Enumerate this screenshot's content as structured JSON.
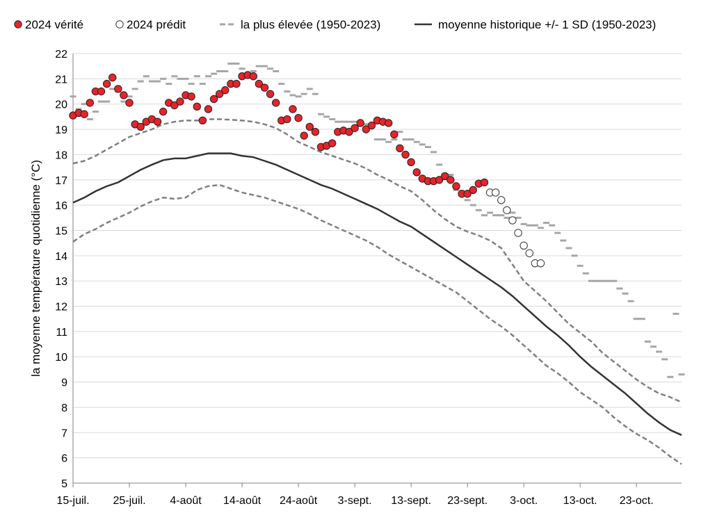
{
  "chart_data": {
    "type": "line",
    "title": "",
    "xlabel": "",
    "ylabel": "la moyenne température quotidienne (°C)",
    "ylim": [
      5,
      22
    ],
    "yticks": [
      5,
      6,
      7,
      8,
      9,
      10,
      11,
      12,
      13,
      14,
      15,
      16,
      17,
      18,
      19,
      20,
      21,
      22
    ],
    "xlim": [
      0,
      108
    ],
    "grid": "horizontal",
    "legend_position": "top",
    "x_tick_labels": [
      {
        "day": 0,
        "label": "15-juil."
      },
      {
        "day": 10,
        "label": "25-juil."
      },
      {
        "day": 20,
        "label": "4-août"
      },
      {
        "day": 30,
        "label": "14-août"
      },
      {
        "day": 40,
        "label": "24-août"
      },
      {
        "day": 50,
        "label": "3-sept."
      },
      {
        "day": 60,
        "label": "13-sept."
      },
      {
        "day": 70,
        "label": "23-sept."
      },
      {
        "day": 80,
        "label": "3-oct."
      },
      {
        "day": 90,
        "label": "13-oct."
      },
      {
        "day": 100,
        "label": "23-oct."
      }
    ],
    "legend": [
      {
        "key": "truth",
        "label": "2024 vérité",
        "marker": "filled-circle"
      },
      {
        "key": "predicted",
        "label": "2024 prédit",
        "marker": "open-circle"
      },
      {
        "key": "highest",
        "label": "la plus élevée (1950-2023)",
        "marker": "gray-dash"
      },
      {
        "key": "mean",
        "label": "moyenne historique +/- 1 SD (1950-2023)",
        "marker": "black-line"
      }
    ],
    "colors": {
      "truth_fill": "#e8232a",
      "truth_edge": "#222222",
      "predicted_edge": "#333333",
      "highest": "#a6a6a6",
      "mean": "#333333",
      "sd": "#7f7f7f",
      "grid": "#d9d9d9",
      "axis": "#808080"
    },
    "series": [
      {
        "name": "2024 vérité",
        "key": "truth",
        "x": [
          0,
          1,
          2,
          3,
          4,
          5,
          6,
          7,
          8,
          9,
          10,
          11,
          12,
          13,
          14,
          15,
          16,
          17,
          18,
          19,
          20,
          21,
          22,
          23,
          24,
          25,
          26,
          27,
          28,
          29,
          30,
          31,
          32,
          33,
          34,
          35,
          36,
          37,
          38,
          39,
          40,
          41,
          42,
          43,
          44,
          45,
          46,
          47,
          48,
          49,
          50,
          51,
          52,
          53,
          54,
          55,
          56,
          57,
          58,
          59,
          60,
          61,
          62,
          63,
          64,
          65,
          66,
          67,
          68,
          69,
          70,
          71,
          72,
          73
        ],
        "values": [
          19.55,
          19.65,
          19.6,
          20.05,
          20.5,
          20.5,
          20.8,
          21.05,
          20.6,
          20.35,
          20.05,
          19.2,
          19.1,
          19.3,
          19.4,
          19.3,
          19.7,
          20.05,
          19.95,
          20.1,
          20.35,
          20.3,
          19.9,
          19.35,
          19.8,
          20.2,
          20.4,
          20.55,
          20.8,
          20.8,
          21.1,
          21.15,
          21.1,
          20.8,
          20.65,
          20.4,
          20.05,
          19.35,
          19.4,
          19.8,
          19.45,
          18.75,
          19.1,
          18.9,
          18.3,
          18.35,
          18.45,
          18.9,
          18.95,
          18.9,
          19.05,
          19.25,
          19.0,
          19.15,
          19.35,
          19.3,
          19.25,
          18.8,
          18.25,
          18.0,
          17.7,
          17.3,
          17.05,
          16.95,
          16.95,
          17.0,
          17.15,
          17.0,
          16.75,
          16.45,
          16.45,
          16.6,
          16.85,
          16.9
        ]
      },
      {
        "name": "2024 prédit",
        "key": "predicted",
        "x": [
          74,
          75,
          76,
          77,
          78,
          79,
          80,
          81,
          82,
          83
        ],
        "values": [
          16.5,
          16.5,
          16.2,
          15.8,
          15.4,
          14.9,
          14.4,
          14.1,
          13.7,
          13.7
        ]
      },
      {
        "name": "la plus élevée (1950-2023)",
        "key": "highest",
        "x": [
          0,
          1,
          2,
          3,
          4,
          5,
          6,
          7,
          8,
          9,
          10,
          11,
          12,
          13,
          14,
          15,
          16,
          17,
          18,
          19,
          20,
          21,
          22,
          23,
          24,
          25,
          26,
          27,
          28,
          29,
          30,
          31,
          32,
          33,
          34,
          35,
          36,
          37,
          38,
          39,
          40,
          41,
          42,
          43,
          44,
          45,
          46,
          47,
          48,
          49,
          50,
          51,
          52,
          53,
          54,
          55,
          56,
          57,
          58,
          59,
          60,
          61,
          62,
          63,
          64,
          65,
          66,
          67,
          68,
          69,
          70,
          71,
          72,
          73,
          74,
          75,
          76,
          77,
          78,
          79,
          80,
          81,
          82,
          83,
          84,
          85,
          86,
          87,
          88,
          89,
          90,
          91,
          92,
          93,
          94,
          95,
          96,
          97,
          98,
          99,
          100,
          101,
          102,
          103,
          104,
          105,
          106,
          107,
          108
        ],
        "values": [
          20.3,
          19.8,
          20.0,
          19.4,
          19.7,
          20.1,
          20.1,
          20.6,
          20.5,
          20.1,
          20.3,
          20.6,
          20.9,
          21.1,
          20.9,
          20.9,
          21.0,
          20.8,
          21.1,
          21.0,
          21.0,
          20.8,
          21.1,
          20.8,
          21.1,
          21.2,
          21.3,
          21.3,
          21.6,
          21.6,
          21.4,
          21.2,
          21.3,
          21.5,
          21.5,
          21.4,
          21.3,
          20.8,
          20.5,
          20.35,
          20.3,
          20.4,
          20.6,
          20.4,
          19.6,
          19.5,
          19.4,
          19.3,
          19.3,
          19.3,
          19.3,
          19.2,
          19.2,
          19.1,
          18.6,
          18.6,
          18.5,
          18.6,
          18.9,
          18.6,
          18.6,
          18.5,
          18.4,
          18.3,
          18.1,
          17.6,
          17.2,
          17.2,
          16.6,
          16.5,
          16.2,
          16.0,
          15.8,
          15.6,
          15.7,
          15.6,
          15.6,
          15.5,
          15.7,
          15.5,
          15.25,
          15.2,
          15.2,
          15.1,
          15.3,
          15.2,
          14.9,
          14.6,
          14.3,
          14.0,
          13.6,
          13.3,
          13.0,
          13.0,
          13.0,
          13.0,
          13.0,
          12.7,
          12.5,
          12.2,
          11.5,
          11.5,
          10.6,
          10.4,
          10.2,
          9.9,
          9.2,
          11.7,
          9.3
        ]
      },
      {
        "name": "moyenne historique",
        "key": "mean",
        "x": [
          0,
          2,
          4,
          6,
          8,
          10,
          12,
          14,
          16,
          18,
          20,
          22,
          24,
          26,
          28,
          30,
          32,
          34,
          36,
          38,
          40,
          42,
          44,
          46,
          48,
          50,
          52,
          54,
          56,
          58,
          60,
          62,
          64,
          66,
          68,
          70,
          72,
          74,
          76,
          78,
          80,
          82,
          84,
          86,
          88,
          90,
          92,
          94,
          96,
          98,
          100,
          102,
          104,
          106,
          108
        ],
        "values": [
          16.1,
          16.3,
          16.55,
          16.75,
          16.9,
          17.15,
          17.4,
          17.6,
          17.78,
          17.85,
          17.85,
          17.95,
          18.05,
          18.05,
          18.05,
          17.95,
          17.9,
          17.75,
          17.6,
          17.4,
          17.2,
          17.0,
          16.8,
          16.65,
          16.45,
          16.25,
          16.05,
          15.85,
          15.6,
          15.35,
          15.15,
          14.85,
          14.55,
          14.25,
          13.95,
          13.65,
          13.35,
          13.05,
          12.75,
          12.4,
          12.0,
          11.6,
          11.2,
          10.85,
          10.45,
          10.0,
          9.6,
          9.25,
          8.9,
          8.55,
          8.15,
          7.75,
          7.4,
          7.1,
          6.9
        ]
      },
      {
        "name": "moyenne + 1 SD",
        "key": "upper_sd",
        "x": [
          0,
          2,
          4,
          6,
          8,
          10,
          12,
          14,
          16,
          18,
          20,
          22,
          24,
          26,
          28,
          30,
          32,
          34,
          36,
          38,
          40,
          42,
          44,
          46,
          48,
          50,
          52,
          54,
          56,
          58,
          60,
          62,
          64,
          66,
          68,
          70,
          72,
          74,
          76,
          78,
          80,
          82,
          84,
          86,
          88,
          90,
          92,
          94,
          96,
          98,
          100,
          102,
          104,
          106,
          108
        ],
        "values": [
          17.65,
          17.75,
          17.95,
          18.2,
          18.45,
          18.7,
          18.85,
          19.0,
          19.2,
          19.3,
          19.35,
          19.35,
          19.4,
          19.4,
          19.38,
          19.35,
          19.3,
          19.2,
          19.05,
          18.8,
          18.5,
          18.3,
          18.1,
          17.95,
          17.8,
          17.65,
          17.45,
          17.2,
          17.0,
          16.75,
          16.55,
          16.2,
          15.8,
          15.45,
          15.15,
          14.95,
          14.8,
          14.6,
          14.3,
          13.65,
          13.0,
          12.6,
          12.2,
          11.75,
          11.3,
          10.95,
          10.6,
          10.15,
          9.8,
          9.45,
          9.1,
          8.8,
          8.55,
          8.4,
          8.2
        ]
      },
      {
        "name": "moyenne - 1 SD",
        "key": "lower_sd",
        "x": [
          0,
          2,
          4,
          6,
          8,
          10,
          12,
          14,
          16,
          18,
          20,
          22,
          24,
          26,
          28,
          30,
          32,
          34,
          36,
          38,
          40,
          42,
          44,
          46,
          48,
          50,
          52,
          54,
          56,
          58,
          60,
          62,
          64,
          66,
          68,
          70,
          72,
          74,
          76,
          78,
          80,
          82,
          84,
          86,
          88,
          90,
          92,
          94,
          96,
          98,
          100,
          102,
          104,
          106,
          108
        ],
        "values": [
          14.55,
          14.85,
          15.05,
          15.3,
          15.5,
          15.7,
          15.95,
          16.15,
          16.3,
          16.25,
          16.3,
          16.6,
          16.75,
          16.8,
          16.65,
          16.5,
          16.4,
          16.3,
          16.15,
          16.0,
          15.85,
          15.65,
          15.4,
          15.2,
          15.0,
          14.8,
          14.6,
          14.35,
          14.05,
          13.8,
          13.55,
          13.3,
          13.05,
          12.8,
          12.55,
          12.2,
          11.85,
          11.5,
          11.2,
          10.85,
          10.45,
          10.05,
          9.65,
          9.35,
          9.0,
          8.6,
          8.3,
          8.0,
          7.6,
          7.25,
          6.95,
          6.7,
          6.4,
          6.05,
          5.75
        ]
      }
    ]
  }
}
